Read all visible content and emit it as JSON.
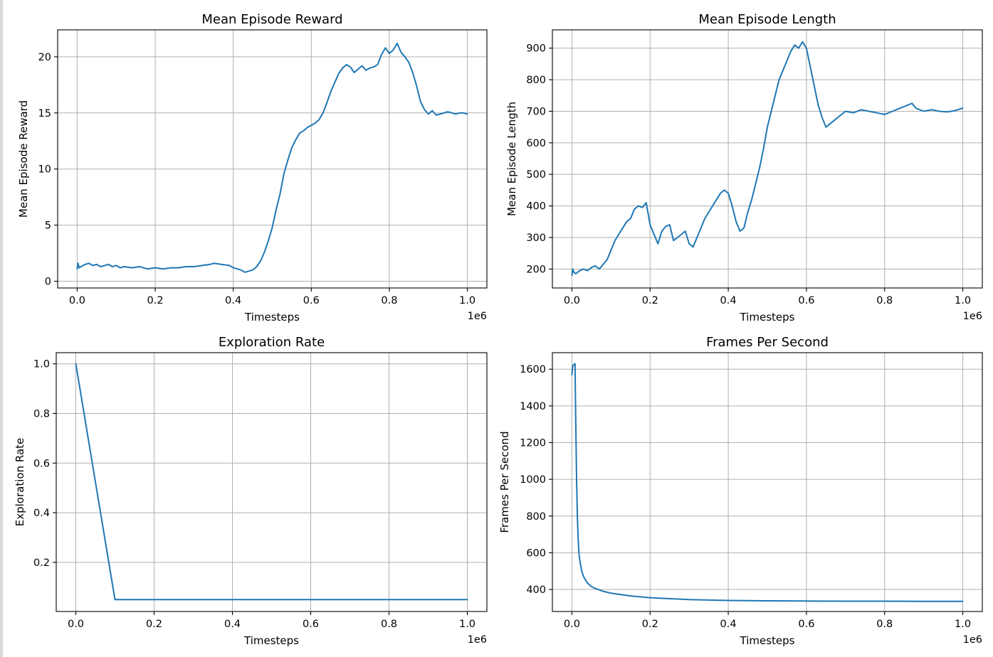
{
  "chart_data": [
    {
      "type": "line",
      "title": "Mean Episode Reward",
      "xlabel": "Timesteps",
      "ylabel": "Mean Episode Reward",
      "x_offset_label": "1e6",
      "xlim": [
        -0.05,
        1.05
      ],
      "ylim": [
        -0.6,
        22.4
      ],
      "xticks": [
        0.0,
        0.2,
        0.4,
        0.6,
        0.8,
        1.0
      ],
      "xtick_labels": [
        "0.0",
        "0.2",
        "0.4",
        "0.6",
        "0.8",
        "1.0"
      ],
      "yticks": [
        0,
        5,
        10,
        15,
        20
      ],
      "ytick_labels": [
        "0",
        "5",
        "10",
        "15",
        "20"
      ],
      "grid": true,
      "color": "#1f77b4",
      "series": [
        {
          "x": [
            0.0,
            0.002,
            0.005,
            0.01,
            0.02,
            0.03,
            0.04,
            0.05,
            0.06,
            0.07,
            0.08,
            0.09,
            0.1,
            0.11,
            0.12,
            0.14,
            0.16,
            0.18,
            0.2,
            0.22,
            0.24,
            0.26,
            0.28,
            0.3,
            0.32,
            0.34,
            0.35,
            0.37,
            0.39,
            0.4,
            0.42,
            0.43,
            0.44,
            0.45,
            0.46,
            0.47,
            0.48,
            0.49,
            0.5,
            0.51,
            0.52,
            0.53,
            0.54,
            0.55,
            0.56,
            0.57,
            0.58,
            0.59,
            0.6,
            0.61,
            0.62,
            0.63,
            0.64,
            0.65,
            0.66,
            0.67,
            0.68,
            0.69,
            0.7,
            0.71,
            0.72,
            0.73,
            0.74,
            0.75,
            0.76,
            0.77,
            0.78,
            0.79,
            0.8,
            0.81,
            0.82,
            0.83,
            0.84,
            0.85,
            0.86,
            0.87,
            0.88,
            0.89,
            0.9,
            0.91,
            0.92,
            0.93,
            0.94,
            0.95,
            0.96,
            0.97,
            0.98,
            0.99,
            1.0
          ],
          "y": [
            1.1,
            1.6,
            1.2,
            1.3,
            1.5,
            1.6,
            1.4,
            1.5,
            1.3,
            1.4,
            1.5,
            1.3,
            1.4,
            1.2,
            1.3,
            1.2,
            1.3,
            1.1,
            1.2,
            1.1,
            1.2,
            1.2,
            1.3,
            1.3,
            1.4,
            1.5,
            1.6,
            1.5,
            1.4,
            1.2,
            1.0,
            0.8,
            0.9,
            1.0,
            1.3,
            1.8,
            2.6,
            3.6,
            4.8,
            6.4,
            7.8,
            9.6,
            10.8,
            11.9,
            12.6,
            13.2,
            13.4,
            13.7,
            13.9,
            14.1,
            14.4,
            15.0,
            15.9,
            16.9,
            17.7,
            18.5,
            19.0,
            19.3,
            19.1,
            18.6,
            18.9,
            19.2,
            18.8,
            19.0,
            19.1,
            19.3,
            20.2,
            20.8,
            20.3,
            20.6,
            21.2,
            20.4,
            20.0,
            19.5,
            18.6,
            17.4,
            16.0,
            15.3,
            14.9,
            15.2,
            14.8,
            14.9,
            15.0,
            15.1,
            15.0,
            14.9,
            15.0,
            15.0,
            14.9
          ]
        }
      ]
    },
    {
      "type": "line",
      "title": "Mean Episode Length",
      "xlabel": "Timesteps",
      "ylabel": "Mean Episode Length",
      "x_offset_label": "1e6",
      "xlim": [
        -0.05,
        1.05
      ],
      "ylim": [
        140,
        958
      ],
      "xticks": [
        0.0,
        0.2,
        0.4,
        0.6,
        0.8,
        1.0
      ],
      "xtick_labels": [
        "0.0",
        "0.2",
        "0.4",
        "0.6",
        "0.8",
        "1.0"
      ],
      "yticks": [
        200,
        300,
        400,
        500,
        600,
        700,
        800,
        900
      ],
      "ytick_labels": [
        "200",
        "300",
        "400",
        "500",
        "600",
        "700",
        "800",
        "900"
      ],
      "grid": true,
      "color": "#1f77b4",
      "series": [
        {
          "x": [
            0.0,
            0.002,
            0.005,
            0.01,
            0.02,
            0.03,
            0.04,
            0.05,
            0.06,
            0.07,
            0.08,
            0.09,
            0.1,
            0.11,
            0.12,
            0.13,
            0.14,
            0.15,
            0.16,
            0.17,
            0.18,
            0.19,
            0.2,
            0.21,
            0.22,
            0.23,
            0.24,
            0.25,
            0.26,
            0.27,
            0.28,
            0.29,
            0.3,
            0.31,
            0.32,
            0.33,
            0.34,
            0.35,
            0.36,
            0.37,
            0.38,
            0.39,
            0.4,
            0.41,
            0.42,
            0.43,
            0.44,
            0.45,
            0.46,
            0.47,
            0.48,
            0.49,
            0.5,
            0.51,
            0.52,
            0.53,
            0.54,
            0.55,
            0.56,
            0.57,
            0.58,
            0.59,
            0.6,
            0.61,
            0.62,
            0.63,
            0.64,
            0.65,
            0.66,
            0.67,
            0.68,
            0.69,
            0.7,
            0.72,
            0.74,
            0.76,
            0.78,
            0.8,
            0.82,
            0.84,
            0.86,
            0.87,
            0.88,
            0.9,
            0.92,
            0.94,
            0.96,
            0.98,
            1.0
          ],
          "y": [
            180,
            200,
            190,
            185,
            195,
            200,
            195,
            205,
            210,
            200,
            215,
            230,
            260,
            290,
            310,
            330,
            350,
            360,
            390,
            400,
            395,
            410,
            340,
            310,
            280,
            320,
            335,
            340,
            290,
            300,
            310,
            320,
            280,
            270,
            300,
            330,
            360,
            380,
            400,
            420,
            440,
            450,
            440,
            400,
            350,
            320,
            330,
            380,
            420,
            470,
            520,
            580,
            650,
            700,
            750,
            800,
            830,
            860,
            890,
            910,
            900,
            920,
            900,
            840,
            780,
            720,
            680,
            650,
            660,
            670,
            680,
            690,
            700,
            695,
            705,
            700,
            695,
            690,
            700,
            710,
            720,
            725,
            710,
            700,
            705,
            700,
            698,
            702,
            710
          ]
        }
      ]
    },
    {
      "type": "line",
      "title": "Exploration Rate",
      "xlabel": "Timesteps",
      "ylabel": "Exploration Rate",
      "x_offset_label": "1e6",
      "xlim": [
        -0.05,
        1.05
      ],
      "ylim": [
        0.002,
        1.045
      ],
      "xticks": [
        0.0,
        0.2,
        0.4,
        0.6,
        0.8,
        1.0
      ],
      "xtick_labels": [
        "0.0",
        "0.2",
        "0.4",
        "0.6",
        "0.8",
        "1.0"
      ],
      "yticks": [
        0.2,
        0.4,
        0.6,
        0.8,
        1.0
      ],
      "ytick_labels": [
        "0.2",
        "0.4",
        "0.6",
        "0.8",
        "1.0"
      ],
      "grid": true,
      "color": "#1f77b4",
      "series": [
        {
          "x": [
            0.0,
            0.1,
            1.0
          ],
          "y": [
            1.0,
            0.05,
            0.05
          ]
        }
      ]
    },
    {
      "type": "line",
      "title": "Frames Per Second",
      "xlabel": "Timesteps",
      "ylabel": "Frames Per Second",
      "x_offset_label": "1e6",
      "xlim": [
        -0.05,
        1.05
      ],
      "ylim": [
        280,
        1690
      ],
      "xticks": [
        0.0,
        0.2,
        0.4,
        0.6,
        0.8,
        1.0
      ],
      "xtick_labels": [
        "0.0",
        "0.2",
        "0.4",
        "0.6",
        "0.8",
        "1.0"
      ],
      "yticks": [
        400,
        600,
        800,
        1000,
        1200,
        1400,
        1600
      ],
      "ytick_labels": [
        "400",
        "600",
        "800",
        "1000",
        "1200",
        "1400",
        "1600"
      ],
      "grid": true,
      "color": "#1f77b4",
      "series": [
        {
          "x": [
            0.0,
            0.002,
            0.005,
            0.008,
            0.01,
            0.012,
            0.014,
            0.016,
            0.018,
            0.02,
            0.025,
            0.03,
            0.035,
            0.04,
            0.05,
            0.06,
            0.08,
            0.1,
            0.15,
            0.2,
            0.3,
            0.4,
            0.5,
            0.6,
            0.7,
            0.8,
            0.9,
            1.0
          ],
          "y": [
            1570,
            1620,
            1625,
            1630,
            1300,
            1000,
            800,
            680,
            600,
            560,
            500,
            470,
            450,
            435,
            415,
            405,
            390,
            380,
            365,
            355,
            345,
            340,
            338,
            337,
            336,
            336,
            335,
            335
          ]
        }
      ]
    }
  ]
}
